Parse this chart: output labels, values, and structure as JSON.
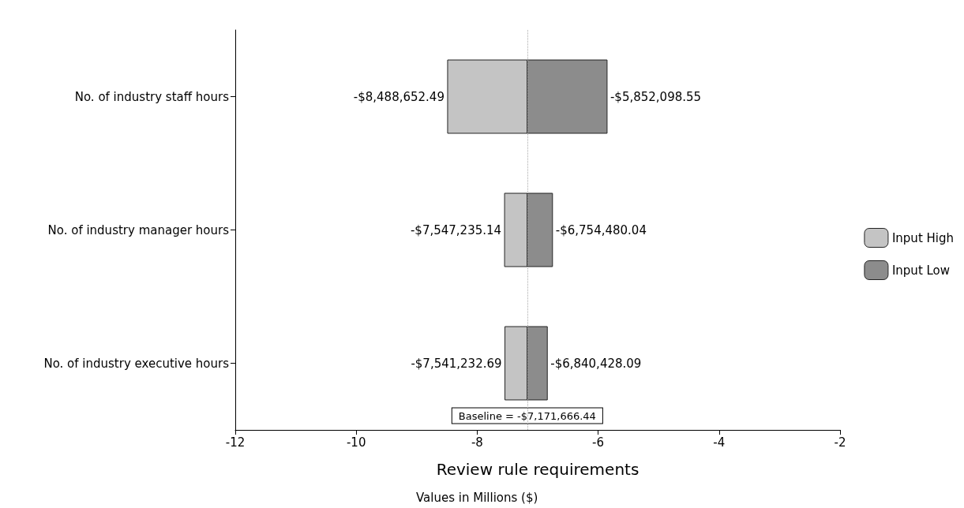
{
  "chart_data": {
    "type": "bar",
    "orientation": "horizontal",
    "xlabel": "Review rule requirements",
    "annotations": [
      "Values in Millions ($)",
      {
        "text": "-$8,488,652.49",
        "x": -8.4887,
        "y": "No. of industry staff hours"
      },
      {
        "text": "-$7,547,235.14",
        "x": -7.5472,
        "y": "No. of industry manager hours"
      },
      {
        "text": "-$7,541,232.69",
        "x": -7.5412,
        "y": "No. of industry executive hours"
      },
      {
        "text": "-$5,852,098.55",
        "x": -5.8521,
        "y": "No. of industry staff hours"
      },
      {
        "text": "-$6,754,480.04",
        "x": -6.7545,
        "y": "No. of industry manager hours"
      },
      {
        "text": "-$6,840,428.09",
        "x": -6.8404,
        "y": "No. of industry executive hours"
      }
    ],
    "categories": [
      "No. of industry staff hours",
      "No. of industry manager hours",
      "No. of industry executive hours"
    ],
    "series": [
      {
        "name": "Input High",
        "color": "#c4c4c4",
        "base": [
          -8.4887,
          -7.5472,
          -7.5412
        ],
        "values": [
          1.317,
          0.3755,
          0.3695
        ]
      },
      {
        "name": "Input Low",
        "color": "#8c8c8c",
        "base": [
          -7.1717,
          -7.1717,
          -7.1717
        ],
        "values": [
          1.3196,
          0.4172,
          0.3313
        ]
      }
    ],
    "xlim": [
      -12,
      -2
    ],
    "xticks": [
      -12,
      -10,
      -8,
      -6,
      -4,
      -2
    ],
    "ref_lines": [
      {
        "axis": "x",
        "value": -7.1717,
        "label": "Baseline = -$7,171,666.44",
        "line_style": "dotted",
        "color": "#aaaaaa"
      }
    ],
    "legend": "right",
    "grid": false
  }
}
